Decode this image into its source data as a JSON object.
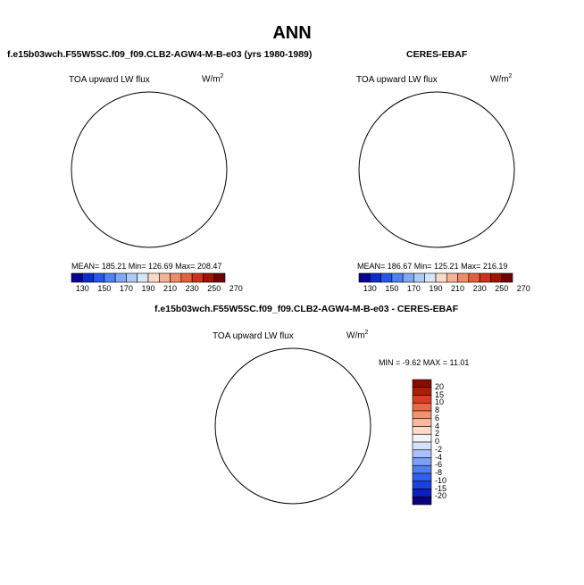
{
  "figure": {
    "title": "ANN"
  },
  "panels": {
    "left": {
      "case_title": "f.e15b03wch.F55W5SC.f09_f09.CLB2-AGW4-M-B-e03 (yrs 1980-1989)",
      "variable": "TOA upward LW flux",
      "units_base": "W/m",
      "units_exp": "2",
      "stats": "MEAN= 185.21   Min= 126.69   Max= 208.47",
      "colorbar_ticks": [
        "130",
        "150",
        "170",
        "190",
        "210",
        "230",
        "250",
        "270"
      ]
    },
    "right": {
      "case_title": "CERES-EBAF",
      "variable": "TOA upward LW flux",
      "units_base": "W/m",
      "units_exp": "2",
      "stats": "MEAN= 186.67   Min= 125.21   Max= 216.19",
      "colorbar_ticks": [
        "130",
        "150",
        "170",
        "190",
        "210",
        "230",
        "250",
        "270"
      ]
    },
    "diff": {
      "case_title": "f.e15b03wch.F55W5SC.f09_f09.CLB2-AGW4-M-B-e03 - CERES-EBAF",
      "variable": "TOA upward LW flux",
      "units_base": "W/m",
      "units_exp": "2",
      "stats": "MIN =   -9.62  MAX =   11.01",
      "colorbar_ticks": [
        "20",
        "15",
        "10",
        "8",
        "6",
        "4",
        "2",
        "0",
        "-2",
        "-4",
        "-6",
        "-8",
        "-10",
        "-15",
        "-20"
      ]
    }
  },
  "colors": {
    "abs_scale": [
      "#08008f",
      "#0a2bd0",
      "#2755e8",
      "#4e82f0",
      "#7fa9f5",
      "#aecaf8",
      "#d5e5fb",
      "#fbd9c4",
      "#f6b296",
      "#f08a68",
      "#e4603d",
      "#cb3418",
      "#a01400",
      "#700000"
    ],
    "diff_scale": [
      "#0b0080",
      "#0b1fbf",
      "#1a40e0",
      "#2f5ef0",
      "#4f80f3",
      "#7aa1f6",
      "#a7c3f9",
      "#d2e2fc",
      "#f4f4f4",
      "#fbdcc9",
      "#f9b99d",
      "#f3916f",
      "#e86a47",
      "#d4411f",
      "#b01d05",
      "#8a0a00"
    ],
    "coastline": "#000000"
  }
}
